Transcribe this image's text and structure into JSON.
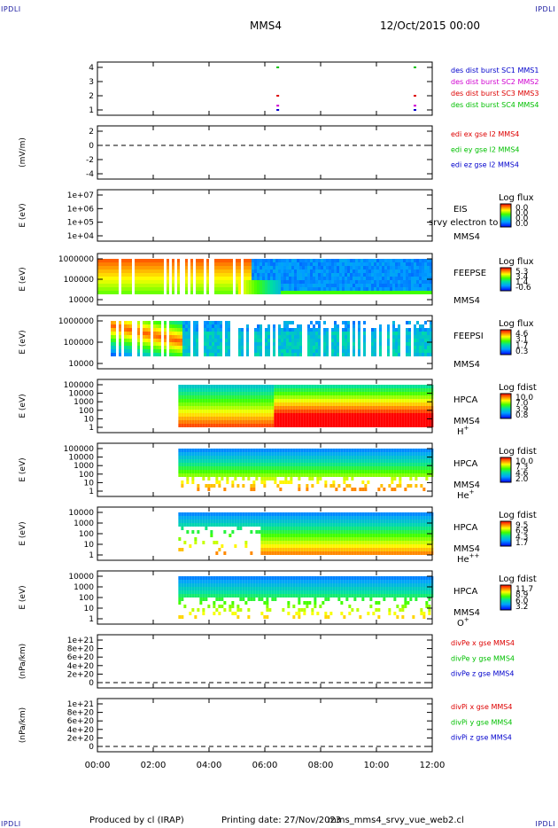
{
  "corners": {
    "tl": "IPDLI",
    "tr": "IPDLI",
    "bl": "IPDLI",
    "br": "IPDLI"
  },
  "header": {
    "spacecraft": "MMS4",
    "date": "12/Oct/2015 00:00"
  },
  "footer": {
    "produced": "Produced by cl (IRAP)",
    "printing": "Printing date: 27/Nov/2023",
    "script": "mms_mms4_srvy_vue_web2.cl"
  },
  "colors": {
    "red": "#dd0000",
    "green": "#00c000",
    "blue": "#0000cc",
    "magenta": "#d000d0",
    "black": "#000000"
  },
  "chart_data": {
    "type": "heatmap",
    "x_ticks": [
      "00:00",
      "02:00",
      "04:00",
      "06:00",
      "08:00",
      "10:00",
      "12:00"
    ],
    "xlim": [
      "00:00",
      "12:00"
    ],
    "panels": [
      {
        "id": "des",
        "type": "scatter",
        "ylabel": "",
        "yticks": [
          "4",
          "3",
          "2",
          "1"
        ],
        "ylim": [
          0.5,
          4.5
        ],
        "legend": [
          {
            "text": "des dist burst SC1 MMS1",
            "color": "blue"
          },
          {
            "text": "des dist burst SC2 MMS2",
            "color": "magenta"
          },
          {
            "text": "des dist burst SC3 MMS3",
            "color": "red"
          },
          {
            "text": "des dist burst SC4 MMS4",
            "color": "green"
          }
        ],
        "series": [
          {
            "name": "SC4",
            "y": 4,
            "color": "green",
            "x": [
              "06:25",
              "11:20"
            ]
          },
          {
            "name": "SC3",
            "y": 2,
            "color": "red",
            "x": [
              "06:25",
              "11:20"
            ]
          },
          {
            "name": "SC2",
            "y": 1.3,
            "color": "magenta",
            "x": [
              "06:25",
              "11:20"
            ]
          },
          {
            "name": "SC1",
            "y": 1,
            "color": "blue",
            "x": [
              "06:25",
              "11:20"
            ]
          }
        ]
      },
      {
        "id": "edi",
        "type": "line",
        "ylabel": "(mV/m)",
        "yticks": [
          "2",
          "0",
          "-2",
          "-4"
        ],
        "ylim": [
          -5.5,
          3
        ],
        "legend": [
          {
            "text": "edi ex gse l2 MMS4",
            "color": "red"
          },
          {
            "text": "edi ey gse l2 MMS4",
            "color": "green"
          },
          {
            "text": "edi ez gse l2 MMS4",
            "color": "blue"
          }
        ]
      },
      {
        "id": "eis",
        "type": "heatmap",
        "ylabel": "E (eV)",
        "yticks": [
          "1e+07",
          "1e+06",
          "1e+05",
          "1e+04"
        ],
        "log": true,
        "instrument": [
          "EIS"
        ],
        "species": "",
        "sc": "MMS4",
        "overlay": "srvy electron to",
        "cbar": {
          "title": "Log flux",
          "ticks": [
            "0.0",
            "0.0",
            "0.0",
            "0.0"
          ]
        }
      },
      {
        "id": "feepse",
        "type": "heatmap",
        "ylabel": "E (eV)",
        "yticks": [
          "1000000",
          "100000",
          "10000"
        ],
        "log": true,
        "instrument": [
          "FEEPSE"
        ],
        "species": "",
        "sc": "MMS4",
        "cbar": {
          "title": "Log flux",
          "ticks": [
            "5.3",
            "3.4",
            "1.4",
            "-0.6"
          ]
        }
      },
      {
        "id": "feepsi",
        "type": "heatmap",
        "ylabel": "E (eV)",
        "yticks": [
          "1000000",
          "100000",
          "10000"
        ],
        "log": true,
        "instrument": [
          "FEEPSI"
        ],
        "species": "",
        "sc": "MMS4",
        "cbar": {
          "title": "Log flux",
          "ticks": [
            "4.6",
            "3.1",
            "1.7",
            "0.3"
          ]
        }
      },
      {
        "id": "hpca_h",
        "type": "heatmap",
        "ylabel": "E (eV)",
        "yticks": [
          "100000",
          "10000",
          "1000",
          "100",
          "10",
          "1"
        ],
        "log": true,
        "instrument": [
          "HPCA"
        ],
        "species": "H",
        "species_sup": "+",
        "sc": "MMS4",
        "cbar": {
          "title": "Log fdist",
          "ticks": [
            "10.0",
            "7.0",
            "3.9",
            "0.8"
          ]
        }
      },
      {
        "id": "hpca_he",
        "type": "heatmap",
        "ylabel": "E (eV)",
        "yticks": [
          "100000",
          "10000",
          "1000",
          "100",
          "10",
          "1"
        ],
        "log": true,
        "instrument": [
          "HPCA"
        ],
        "species": "He",
        "species_sup": "+",
        "sc": "MMS4",
        "cbar": {
          "title": "Log fdist",
          "ticks": [
            "10.0",
            "7.3",
            "4.6",
            "2.0"
          ]
        }
      },
      {
        "id": "hpca_hepp",
        "type": "heatmap",
        "ylabel": "E (eV)",
        "yticks": [
          "10000",
          "1000",
          "100",
          "10",
          "1"
        ],
        "log": true,
        "instrument": [
          "HPCA"
        ],
        "species": "He",
        "species_sup": "++",
        "sc": "MMS4",
        "cbar": {
          "title": "Log fdist",
          "ticks": [
            "9.5",
            "6.9",
            "4.3",
            "1.7"
          ]
        }
      },
      {
        "id": "hpca_o",
        "type": "heatmap",
        "ylabel": "E (eV)",
        "yticks": [
          "10000",
          "1000",
          "100",
          "10",
          "1"
        ],
        "log": true,
        "instrument": [
          "HPCA"
        ],
        "species": "O",
        "species_sup": "+",
        "sc": "MMS4",
        "cbar": {
          "title": "Log fdist",
          "ticks": [
            "11.7",
            "8.9",
            "6.0",
            "3.2"
          ]
        }
      },
      {
        "id": "divpe",
        "type": "line",
        "ylabel": "(nPa/km)",
        "yticks": [
          "1e+21",
          "8e+20",
          "6e+20",
          "4e+20",
          "2e+20",
          "0"
        ],
        "ylim": [
          -1e+20,
          1.05e+21
        ],
        "legend": [
          {
            "text": "divPe x gse MMS4",
            "color": "red"
          },
          {
            "text": "divPe y gse MMS4",
            "color": "green"
          },
          {
            "text": "divPe z gse MMS4",
            "color": "blue"
          }
        ]
      },
      {
        "id": "divpi",
        "type": "line",
        "ylabel": "(nPa/km)",
        "yticks": [
          "1e+21",
          "8e+20",
          "6e+20",
          "4e+20",
          "2e+20",
          "0"
        ],
        "ylim": [
          -1e+20,
          1.05e+21
        ],
        "legend": [
          {
            "text": "divPi x gse MMS4",
            "color": "red"
          },
          {
            "text": "divPi y gse MMS4",
            "color": "green"
          },
          {
            "text": "divPi z gse MMS4",
            "color": "blue"
          }
        ]
      }
    ]
  }
}
